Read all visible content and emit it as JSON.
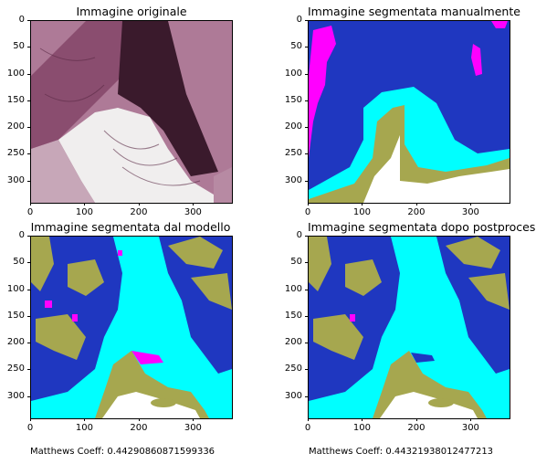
{
  "chart_data": [
    {
      "type": "heatmap",
      "title": "Immagine originale",
      "xticks": [
        "0",
        "100",
        "200",
        "300"
      ],
      "yticks": [
        "0",
        "50",
        "100",
        "150",
        "200",
        "250",
        "300"
      ],
      "xlim": [
        0,
        370
      ],
      "ylim": [
        340,
        0
      ],
      "image": "histology photo (H&E stain)"
    },
    {
      "type": "heatmap",
      "title": "Immagine segmentata manualmente",
      "xticks": [
        "0",
        "100",
        "200",
        "300"
      ],
      "yticks": [
        "0",
        "50",
        "100",
        "150",
        "200",
        "250",
        "300"
      ],
      "xlim": [
        0,
        370
      ],
      "ylim": [
        340,
        0
      ],
      "classes_colors": [
        "#1f37c0",
        "#00ffff",
        "#a6a74f",
        "#ff00ff",
        "#ffffff"
      ]
    },
    {
      "type": "heatmap",
      "title": "Immagine segmentata dal modello",
      "xticks": [
        "0",
        "100",
        "200",
        "300"
      ],
      "yticks": [
        "0",
        "50",
        "100",
        "150",
        "200",
        "250",
        "300"
      ],
      "xlim": [
        0,
        370
      ],
      "ylim": [
        340,
        0
      ],
      "classes_colors": [
        "#1f37c0",
        "#00ffff",
        "#a6a74f",
        "#ff00ff",
        "#ffffff"
      ]
    },
    {
      "type": "heatmap",
      "title": "Immagine segmentata dopo postprocessing",
      "xticks": [
        "0",
        "100",
        "200",
        "300"
      ],
      "yticks": [
        "0",
        "50",
        "100",
        "150",
        "200",
        "250",
        "300"
      ],
      "xlim": [
        0,
        370
      ],
      "ylim": [
        340,
        0
      ],
      "classes_colors": [
        "#1f37c0",
        "#00ffff",
        "#a6a74f",
        "#ff00ff",
        "#ffffff"
      ]
    }
  ],
  "captions": {
    "left": "Matthews Coeff: 0.44290860871599336",
    "right": "Matthews Coeff: 0.44321938012477213"
  },
  "colors": {
    "blue": "#1f37c0",
    "cyan": "#00ffff",
    "olive": "#a6a74f",
    "magenta": "#ff00ff",
    "white": "#ffffff"
  }
}
